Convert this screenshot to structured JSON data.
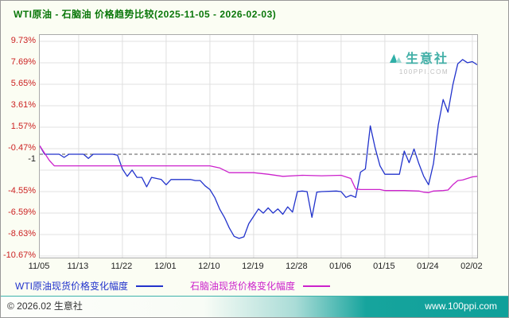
{
  "header": {
    "title": "WTI原油 - 石脑油 价格趋势比较(2025-11-05 - 2026-02-03)"
  },
  "watermark": {
    "brand": "生意社",
    "site": "100PPI.COM"
  },
  "footer": {
    "copyright": "© 2026.02 生意社",
    "url": "www.100ppi.com"
  },
  "colors": {
    "wti_line": "#2233cc",
    "naphtha_line": "#cc22cc",
    "axis_label": "#cc2222",
    "brand_teal": "#14a098",
    "title_green": "#0a770a"
  },
  "chart_data": {
    "type": "line",
    "title": "WTI原油 - 石脑油 价格趋势比较(2025-11-05 - 2026-02-03)",
    "ylabel": "",
    "xlabel": "",
    "y_range": [
      -10.67,
      9.73
    ],
    "grid": true,
    "legend_position": "bottom",
    "y_ticks": [
      {
        "label": "9.73%",
        "value": 9.73
      },
      {
        "label": "7.69%",
        "value": 7.69
      },
      {
        "label": "5.65%",
        "value": 5.65
      },
      {
        "label": "3.61%",
        "value": 3.61
      },
      {
        "label": "1.57%",
        "value": 1.57
      },
      {
        "label": "-0.47%",
        "value": -0.47
      },
      {
        "label": "",
        "value": -2.51
      },
      {
        "label": "-4.55%",
        "value": -4.55
      },
      {
        "label": "-6.59%",
        "value": -6.59
      },
      {
        "label": "-8.63%",
        "value": -8.63
      },
      {
        "label": "-10.67%",
        "value": -10.67
      }
    ],
    "ref_line": {
      "label": "-1",
      "value": -1
    },
    "x_ticks": [
      {
        "label": "11/05",
        "day": 0
      },
      {
        "label": "11/13",
        "day": 8
      },
      {
        "label": "11/22",
        "day": 17
      },
      {
        "label": "12/01",
        "day": 26
      },
      {
        "label": "12/10",
        "day": 35
      },
      {
        "label": "12/19",
        "day": 44
      },
      {
        "label": "12/28",
        "day": 53
      },
      {
        "label": "01/06",
        "day": 62
      },
      {
        "label": "01/15",
        "day": 71
      },
      {
        "label": "01/24",
        "day": 80
      },
      {
        "label": "02/02",
        "day": 89
      }
    ],
    "series": [
      {
        "name": "WTI原油现货价格变化幅度",
        "color": "#2233cc",
        "points": [
          [
            0,
            -0.2
          ],
          [
            1,
            -1.0
          ],
          [
            4,
            -1.0
          ],
          [
            5,
            -1.3
          ],
          [
            6,
            -1.0
          ],
          [
            9,
            -1.0
          ],
          [
            10,
            -1.4
          ],
          [
            11,
            -1.0
          ],
          [
            15,
            -1.0
          ],
          [
            16,
            -1.1
          ],
          [
            17,
            -2.4
          ],
          [
            18,
            -3.1
          ],
          [
            19,
            -2.5
          ],
          [
            20,
            -3.2
          ],
          [
            21,
            -3.2
          ],
          [
            22,
            -4.1
          ],
          [
            23,
            -3.2
          ],
          [
            25,
            -3.4
          ],
          [
            26,
            -3.9
          ],
          [
            27,
            -3.4
          ],
          [
            31,
            -3.4
          ],
          [
            32,
            -3.5
          ],
          [
            33,
            -3.5
          ],
          [
            34,
            -4.0
          ],
          [
            35,
            -4.35
          ],
          [
            36,
            -5.1
          ],
          [
            37,
            -6.2
          ],
          [
            38,
            -7.0
          ],
          [
            39,
            -8.0
          ],
          [
            40,
            -8.8
          ],
          [
            41,
            -9.0
          ],
          [
            42,
            -8.85
          ],
          [
            43,
            -7.6
          ],
          [
            44,
            -6.9
          ],
          [
            45,
            -6.2
          ],
          [
            46,
            -6.6
          ],
          [
            47,
            -6.1
          ],
          [
            48,
            -6.6
          ],
          [
            49,
            -6.2
          ],
          [
            50,
            -6.7
          ],
          [
            51,
            -6.0
          ],
          [
            52,
            -6.5
          ],
          [
            53,
            -4.55
          ],
          [
            54,
            -4.5
          ],
          [
            55,
            -4.55
          ],
          [
            56,
            -7.0
          ],
          [
            57,
            -4.6
          ],
          [
            58,
            -4.55
          ],
          [
            61,
            -4.5
          ],
          [
            62,
            -4.55
          ],
          [
            63,
            -5.1
          ],
          [
            64,
            -4.9
          ],
          [
            65,
            -5.1
          ],
          [
            66,
            -2.7
          ],
          [
            67,
            -2.4
          ],
          [
            68,
            1.7
          ],
          [
            69,
            -0.4
          ],
          [
            70,
            -2.1
          ],
          [
            71,
            -2.9
          ],
          [
            74,
            -2.9
          ],
          [
            75,
            -0.7
          ],
          [
            76,
            -1.8
          ],
          [
            77,
            -0.5
          ],
          [
            78,
            -1.9
          ],
          [
            79,
            -3.1
          ],
          [
            80,
            -3.9
          ],
          [
            81,
            -1.9
          ],
          [
            82,
            1.8
          ],
          [
            83,
            4.2
          ],
          [
            84,
            3.0
          ],
          [
            85,
            5.6
          ],
          [
            86,
            7.6
          ],
          [
            87,
            8.0
          ],
          [
            88,
            7.7
          ],
          [
            89,
            7.8
          ],
          [
            90,
            7.5
          ]
        ]
      },
      {
        "name": "石脑油现货价格变化幅度",
        "color": "#cc22cc",
        "points": [
          [
            0,
            -0.2
          ],
          [
            1,
            -0.9
          ],
          [
            2,
            -1.6
          ],
          [
            3,
            -2.1
          ],
          [
            17,
            -2.1
          ],
          [
            26,
            -2.1
          ],
          [
            35,
            -2.1
          ],
          [
            37,
            -2.3
          ],
          [
            39,
            -2.75
          ],
          [
            44,
            -2.75
          ],
          [
            47,
            -2.9
          ],
          [
            50,
            -3.1
          ],
          [
            54,
            -3.0
          ],
          [
            58,
            -3.05
          ],
          [
            62,
            -3.0
          ],
          [
            63,
            -3.15
          ],
          [
            64,
            -3.3
          ],
          [
            65,
            -4.3
          ],
          [
            66,
            -4.35
          ],
          [
            70,
            -4.35
          ],
          [
            71,
            -4.45
          ],
          [
            75,
            -4.45
          ],
          [
            78,
            -4.5
          ],
          [
            79,
            -4.6
          ],
          [
            80,
            -4.65
          ],
          [
            81,
            -4.5
          ],
          [
            83,
            -4.45
          ],
          [
            84,
            -4.4
          ],
          [
            85,
            -3.9
          ],
          [
            86,
            -3.5
          ],
          [
            87,
            -3.45
          ],
          [
            89,
            -3.15
          ],
          [
            90,
            -3.1
          ]
        ]
      }
    ]
  }
}
